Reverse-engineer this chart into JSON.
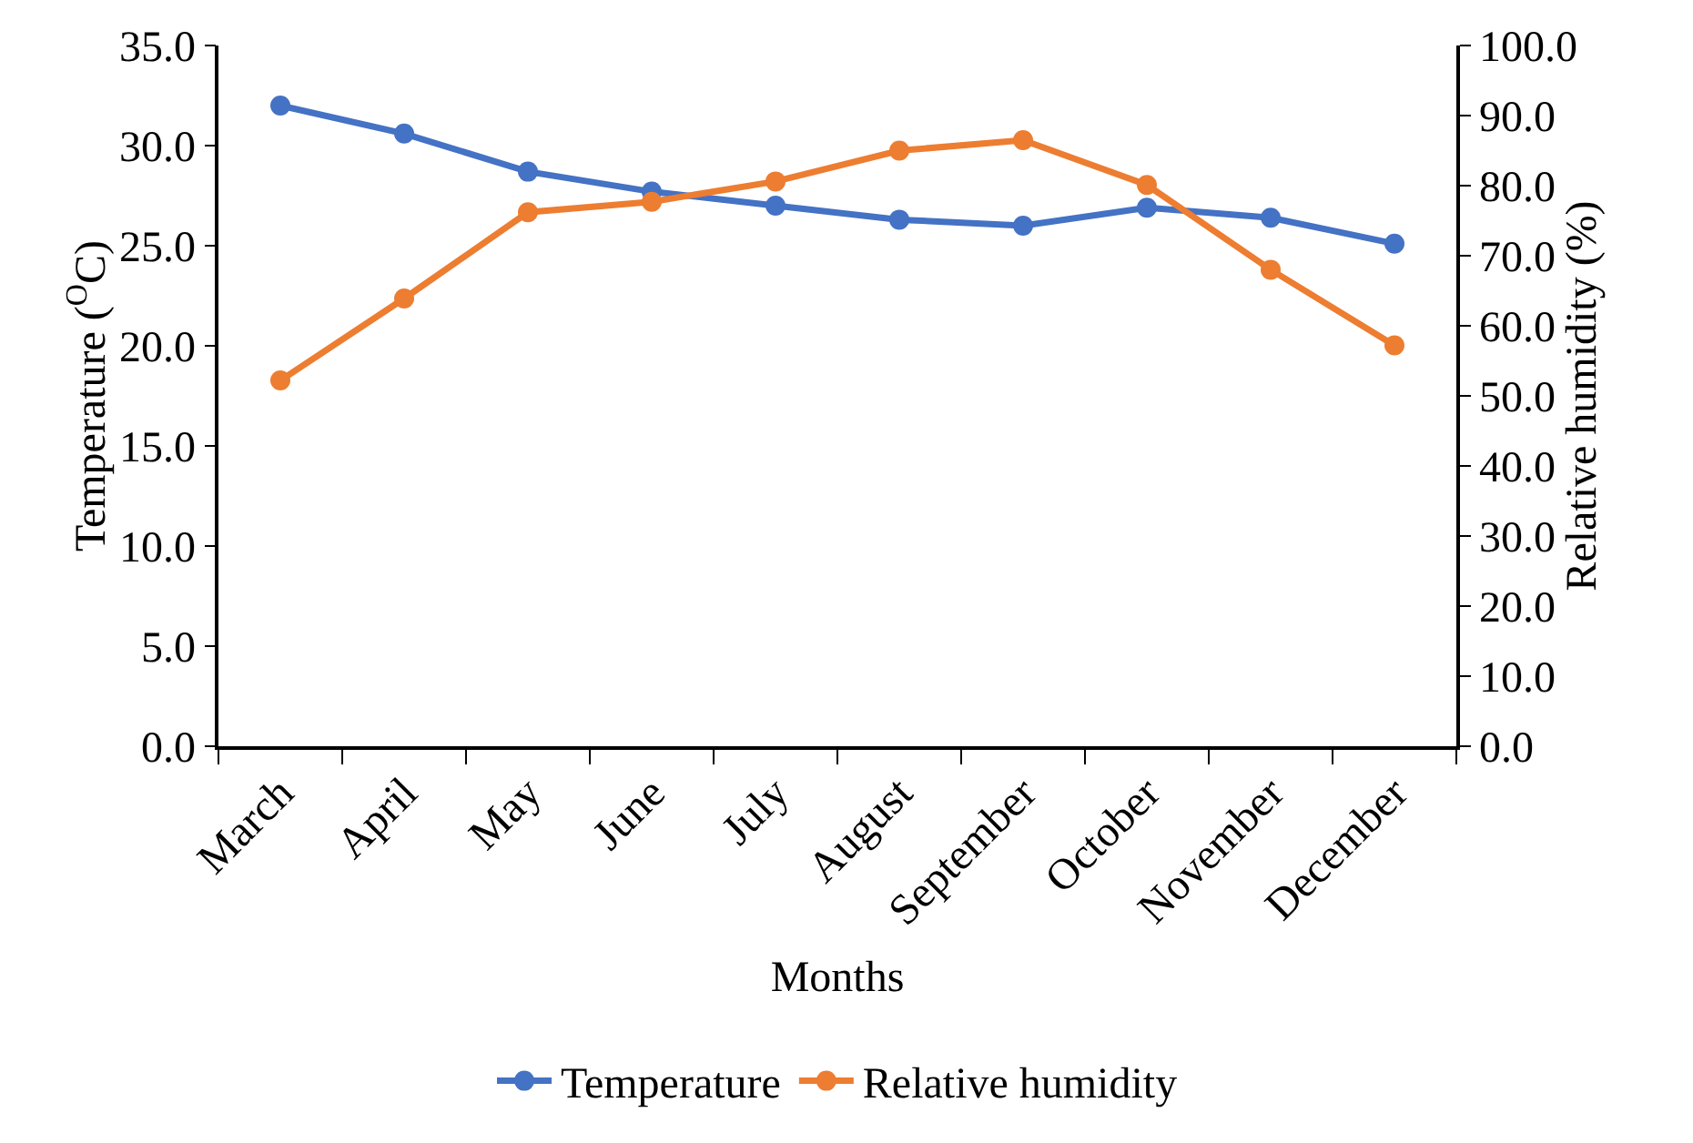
{
  "chart_data": {
    "type": "line",
    "xlabel": "Months",
    "ylabel": "Temperature ($^{O}$C)",
    "y2label": "Relative humidity (%)",
    "categories": [
      "March",
      "April",
      "May",
      "June",
      "July",
      "August",
      "September",
      "October",
      "November",
      "December"
    ],
    "series": [
      {
        "name": "Temperature",
        "color": "#4472c4",
        "values": [
          32.0,
          30.6,
          28.7,
          27.7,
          27.0,
          26.3,
          26.0,
          26.9,
          26.4,
          25.1
        ]
      },
      {
        "name": "Relative humidity",
        "color": "#ed7d31",
        "axis": "y2",
        "values": [
          52.2,
          63.9,
          76.2,
          77.7,
          80.6,
          85.0,
          86.5,
          80.1,
          68.0,
          57.2
        ]
      }
    ],
    "ylim": [
      0,
      35
    ],
    "yticks": [
      {
        "value": 0,
        "label": "0.0"
      },
      {
        "value": 5,
        "label": "5.0"
      },
      {
        "value": 10,
        "label": "10.0"
      },
      {
        "value": 15,
        "label": "15.0"
      },
      {
        "value": 20,
        "label": "20.0"
      },
      {
        "value": 25,
        "label": "25.0"
      },
      {
        "value": 30,
        "label": "30.0"
      },
      {
        "value": 35,
        "label": "35.0"
      }
    ],
    "y2lim": [
      0,
      100
    ],
    "y2ticks": [
      {
        "value": 0,
        "label": "0.0"
      },
      {
        "value": 10,
        "label": "10.0"
      },
      {
        "value": 20,
        "label": "20.0"
      },
      {
        "value": 30,
        "label": "30.0"
      },
      {
        "value": 40,
        "label": "40.0"
      },
      {
        "value": 50,
        "label": "50.0"
      },
      {
        "value": 60,
        "label": "60.0"
      },
      {
        "value": 70,
        "label": "70.0"
      },
      {
        "value": 80,
        "label": "80.0"
      },
      {
        "value": 90,
        "label": "90.0"
      },
      {
        "value": 100,
        "label": "100.0"
      }
    ],
    "grid": false,
    "legend": "bottom",
    "marker": "circle",
    "line_style": "solid"
  }
}
